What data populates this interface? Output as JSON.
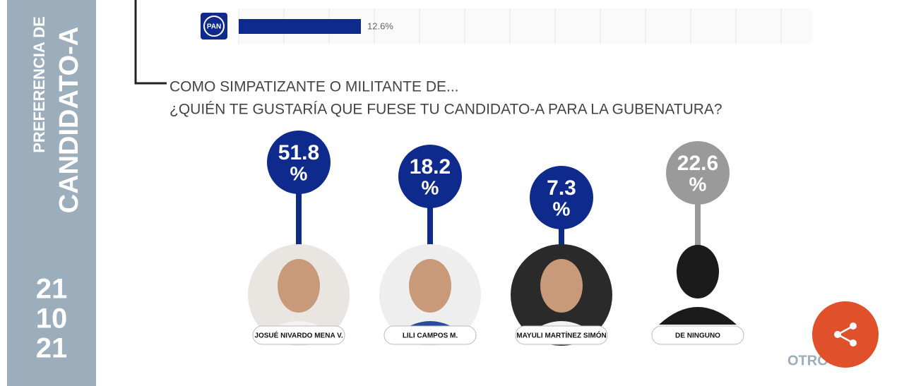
{
  "sidebar": {
    "line1": "PREFERENCIA DE",
    "line2": "CANDIDATO-A",
    "date": [
      "21",
      "10",
      "21"
    ]
  },
  "top_bar": {
    "party": "PAN",
    "value_label": "12.6%"
  },
  "question": {
    "line1": "COMO SIMPATIZANTE O MILITANTE DE...",
    "line2": "¿QUIÉN TE GUSTARÍA QUE FUESE TU CANDIDATO-A PARA LA GUBENATURA?"
  },
  "candidates": [
    {
      "value": 51.8,
      "unit": "%",
      "name": "JOSUÉ NIVARDO MENA V."
    },
    {
      "value": 18.2,
      "unit": "%",
      "name": "LILI CAMPOS M."
    },
    {
      "value": 7.3,
      "unit": "%",
      "name": "MAYULI MARTÍNEZ SIMÓN"
    },
    {
      "value": 22.6,
      "unit": "%",
      "name": "DE NINGUNO"
    }
  ],
  "footer": {
    "other": "OTRO"
  }
}
